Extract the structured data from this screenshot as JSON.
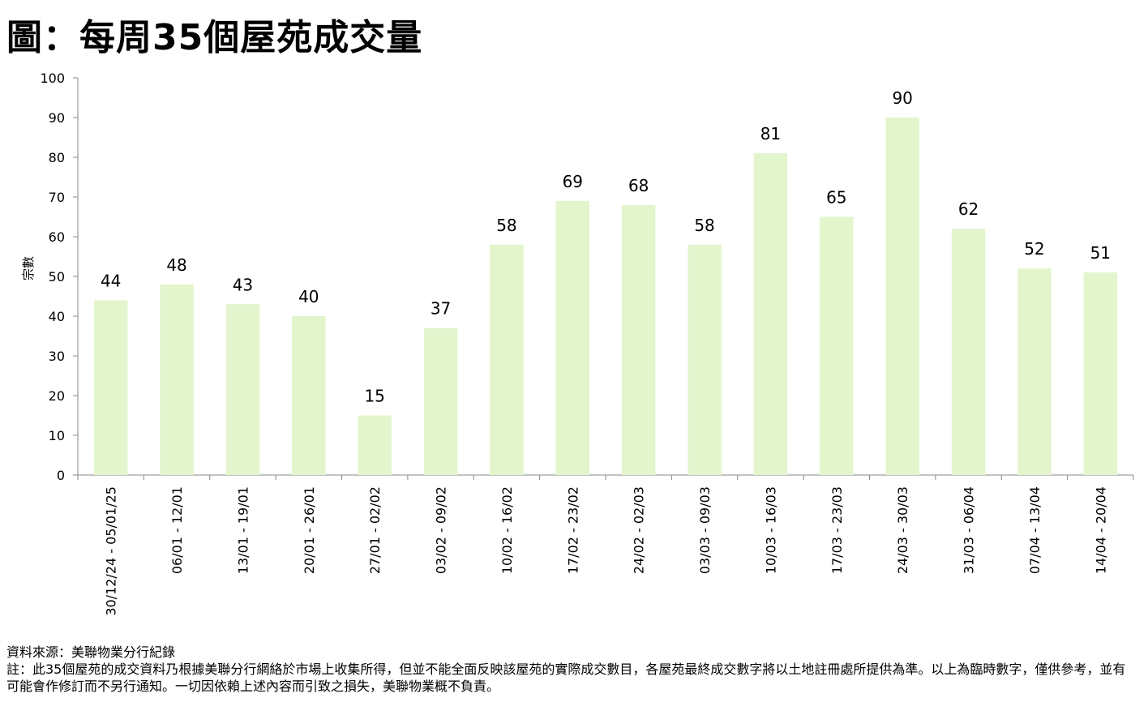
{
  "title": "圖：每周35個屋苑成交量",
  "chart_data": {
    "type": "bar",
    "title": "圖：每周35個屋苑成交量",
    "ylabel": "宗數",
    "xlabel": "",
    "ylim": [
      0,
      100
    ],
    "yticks": [
      0,
      10,
      20,
      30,
      40,
      50,
      60,
      70,
      80,
      90,
      100
    ],
    "grid": false,
    "bar_color": "#e2f5cc",
    "categories": [
      "30/12/24 - 05/01/25",
      "06/01 - 12/01",
      "13/01 - 19/01",
      "20/01 - 26/01",
      "27/01 - 02/02",
      "03/02 - 09/02",
      "10/02 - 16/02",
      "17/02 - 23/02",
      "24/02 - 02/03",
      "03/03 - 09/03",
      "10/03 - 16/03",
      "17/03 - 23/03",
      "24/03 - 30/03",
      "31/03 - 06/04",
      "07/04 - 13/04",
      "14/04 - 20/04"
    ],
    "values": [
      44,
      48,
      43,
      40,
      15,
      37,
      58,
      69,
      68,
      58,
      81,
      65,
      90,
      62,
      52,
      51
    ]
  },
  "footer": {
    "source": "資料來源：美聯物業分行紀錄",
    "note": "註：此35個屋苑的成交資料乃根據美聯分行網絡於市場上收集所得，但並不能全面反映該屋苑的實際成交數目，各屋苑最終成交數字將以土地註冊處所提供為準。以上為臨時數字，僅供參考，並有可能會作修訂而不另行通知。一切因依賴上述內容而引致之損失，美聯物業概不負責。"
  }
}
